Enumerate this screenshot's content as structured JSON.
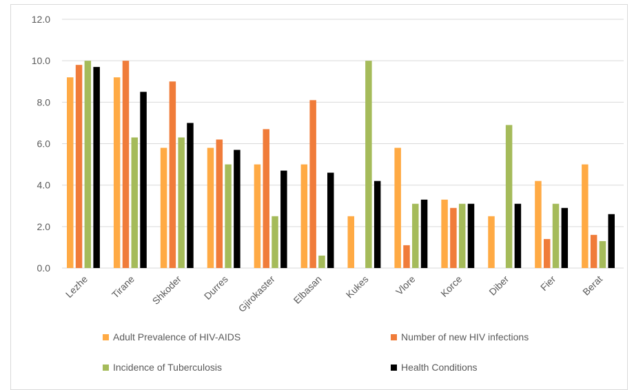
{
  "chart_data": {
    "type": "bar",
    "categories": [
      "Lezhe",
      "Tirane",
      "Shkoder",
      "Durres",
      "Gjirokaster",
      "Elbasan",
      "Kukes",
      "Vlore",
      "Korce",
      "Diber",
      "Fier",
      "Berat"
    ],
    "series": [
      {
        "name": "Adult Prevalence of HIV-AIDS",
        "color": "#ffaa44",
        "values": [
          9.2,
          9.2,
          5.8,
          5.8,
          5.0,
          5.0,
          2.5,
          5.8,
          3.3,
          2.5,
          4.2,
          5.0
        ]
      },
      {
        "name": "Number of new HIV infections",
        "color": "#f07c3a",
        "values": [
          9.8,
          10.0,
          9.0,
          6.2,
          6.7,
          8.1,
          0,
          1.1,
          2.9,
          0,
          1.4,
          1.6
        ]
      },
      {
        "name": "Incidence of Tuberculosis",
        "color": "#a5bb5a",
        "values": [
          10.0,
          6.3,
          6.3,
          5.0,
          2.5,
          0.6,
          10.0,
          3.1,
          3.1,
          6.9,
          3.1,
          1.3
        ]
      },
      {
        "name": "Health Conditions",
        "color": "#000000",
        "values": [
          9.7,
          8.5,
          7.0,
          5.7,
          4.7,
          4.6,
          4.2,
          3.3,
          3.1,
          3.1,
          2.9,
          2.6
        ]
      }
    ],
    "yticks": [
      "0.0",
      "2.0",
      "4.0",
      "6.0",
      "8.0",
      "10.0",
      "12.0"
    ],
    "ylim": [
      0,
      12
    ],
    "grid": true,
    "legend_position": "bottom",
    "gridline_color": "#d9d9d9"
  }
}
